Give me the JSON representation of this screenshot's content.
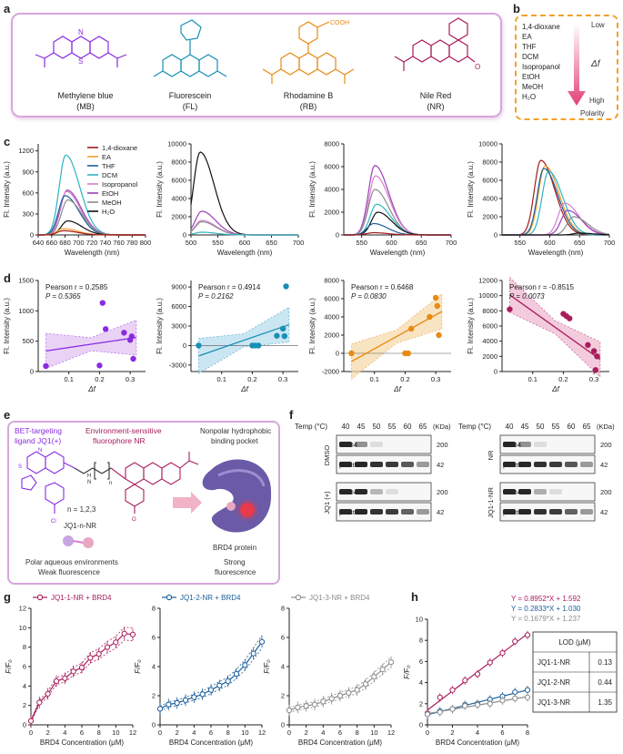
{
  "panels": {
    "a": "a",
    "b": "b",
    "c": "c",
    "d": "d",
    "e": "e",
    "f": "f",
    "g": "g",
    "h": "h"
  },
  "molecules": [
    {
      "name": "Methylene blue",
      "abbr": "(MB)",
      "color": "#8a2be2"
    },
    {
      "name": "Fluorescein",
      "abbr": "(FL)",
      "color": "#1a8fb5"
    },
    {
      "name": "Rhodamine B",
      "abbr": "(RB)",
      "color": "#e88a12"
    },
    {
      "name": "Nile Red",
      "abbr": "(NR)",
      "color": "#a81d5c"
    }
  ],
  "struct_labels": {
    "cooh": "COOH"
  },
  "solvents_b": {
    "items": [
      "1,4-dioxane",
      "EA",
      "THF",
      "DCM",
      "Isopropanol",
      "EtOH",
      "MeOH",
      "H₂O"
    ],
    "low": "Low",
    "high": "High",
    "polarity": "Polarity",
    "delta_f": "Δf"
  },
  "legend_c": {
    "items": [
      {
        "label": "1,4-dioxane",
        "color": "#a31a1a"
      },
      {
        "label": "EA",
        "color": "#f2a02c"
      },
      {
        "label": "THF",
        "color": "#1b5e9a"
      },
      {
        "label": "DCM",
        "color": "#2fb3c2"
      },
      {
        "label": "Isopropanol",
        "color": "#d77fd0"
      },
      {
        "label": "EtOH",
        "color": "#9b3fb5"
      },
      {
        "label": "MeOH",
        "color": "#8c8c8c"
      },
      {
        "label": "H₂O",
        "color": "#111111"
      }
    ]
  },
  "chart_data": [
    {
      "id": "c1",
      "type": "line",
      "xlabel": "Wavelength (nm)",
      "ylabel": "Fl. Intensity (a.u.)",
      "xlim": [
        640,
        800
      ],
      "ylim": [
        0,
        1300
      ],
      "xticks": [
        640,
        660,
        680,
        700,
        720,
        740,
        760,
        780,
        800
      ],
      "yticks": [
        0,
        300,
        600,
        900,
        1200
      ],
      "series": [
        {
          "name": "DCM",
          "peak": 681,
          "height": 1140
        },
        {
          "name": "EtOH",
          "peak": 683,
          "height": 640
        },
        {
          "name": "Isopropanol",
          "peak": 682,
          "height": 620
        },
        {
          "name": "THF",
          "peak": 680,
          "height": 560
        },
        {
          "name": "MeOH",
          "peak": 684,
          "height": 500
        },
        {
          "name": "H₂O",
          "peak": 684,
          "height": 200
        },
        {
          "name": "EA",
          "peak": 678,
          "height": 90
        },
        {
          "name": "1,4-dioxane",
          "peak": 678,
          "height": 60
        }
      ]
    },
    {
      "id": "c2",
      "type": "line",
      "xlabel": "Wavelength (nm)",
      "ylabel": "Fl. Intensity (a.u.)",
      "xlim": [
        500,
        700
      ],
      "ylim": [
        0,
        10000
      ],
      "xticks": [
        500,
        550,
        600,
        650,
        700
      ],
      "yticks": [
        0,
        2000,
        4000,
        6000,
        8000,
        10000
      ],
      "series": [
        {
          "name": "H₂O",
          "peak": 517,
          "height": 9100
        },
        {
          "name": "EtOH",
          "peak": 520,
          "height": 2600
        },
        {
          "name": "Isopropanol",
          "peak": 520,
          "height": 1600
        },
        {
          "name": "MeOH",
          "peak": 520,
          "height": 1450
        },
        {
          "name": "DCM",
          "peak": 520,
          "height": 300
        }
      ]
    },
    {
      "id": "c3",
      "type": "line",
      "xlabel": "Wavelength (nm)",
      "ylabel": "Fl. Intensity (a.u.)",
      "xlim": [
        520,
        700
      ],
      "ylim": [
        0,
        8000
      ],
      "xticks": [
        550,
        600,
        650,
        700
      ],
      "yticks": [
        0,
        2000,
        4000,
        6000,
        8000
      ],
      "series": [
        {
          "name": "EtOH",
          "peak": 572,
          "height": 6100
        },
        {
          "name": "Isopropanol",
          "peak": 573,
          "height": 5200
        },
        {
          "name": "MeOH",
          "peak": 572,
          "height": 4000
        },
        {
          "name": "DCM",
          "peak": 575,
          "height": 2700
        },
        {
          "name": "H₂O",
          "peak": 577,
          "height": 2000
        },
        {
          "name": "THF",
          "peak": 570,
          "height": 1000
        },
        {
          "name": "1,4-dioxane",
          "peak": 570,
          "height": 200
        }
      ]
    },
    {
      "id": "c4",
      "type": "line",
      "xlabel": "Wavelength (nm)",
      "ylabel": "Fl. Intensity (a.u.)",
      "xlim": [
        520,
        700
      ],
      "ylim": [
        0,
        10000
      ],
      "xticks": [
        550,
        600,
        650,
        700
      ],
      "yticks": [
        0,
        2000,
        4000,
        6000,
        8000,
        10000
      ],
      "series": [
        {
          "name": "1,4-dioxane",
          "peak": 585,
          "height": 8200
        },
        {
          "name": "EA",
          "peak": 592,
          "height": 7600
        },
        {
          "name": "THF",
          "peak": 590,
          "height": 7300
        },
        {
          "name": "DCM",
          "peak": 598,
          "height": 7000
        },
        {
          "name": "Isopropanol",
          "peak": 625,
          "height": 3500
        },
        {
          "name": "EtOH",
          "peak": 630,
          "height": 2700
        },
        {
          "name": "MeOH",
          "peak": 640,
          "height": 2000
        },
        {
          "name": "H₂O",
          "peak": 650,
          "height": 200
        }
      ]
    },
    {
      "id": "d1",
      "type": "scatter",
      "xlabel": "Δf",
      "ylabel": "Fl. Intensity (a.u.)",
      "xlim": [
        0,
        0.35
      ],
      "ylim": [
        0,
        1500
      ],
      "xticks": [
        0.1,
        0.2,
        0.3
      ],
      "yticks": [
        0,
        500,
        1000,
        1500
      ],
      "color": "#8a2be2",
      "fill": "#e2bff2",
      "pearson": "Pearson r = 0.2585",
      "p": "P = 0.5365",
      "points": [
        [
          0.025,
          90
        ],
        [
          0.2,
          100
        ],
        [
          0.21,
          1130
        ],
        [
          0.22,
          700
        ],
        [
          0.28,
          640
        ],
        [
          0.3,
          520
        ],
        [
          0.31,
          210
        ],
        [
          0.305,
          580
        ]
      ],
      "fit": [
        [
          0.025,
          340
        ],
        [
          0.32,
          560
        ]
      ]
    },
    {
      "id": "d2",
      "type": "scatter",
      "xlabel": "Δf",
      "ylabel": "Fl. Intensity (a.u.)",
      "xlim": [
        0,
        0.35
      ],
      "ylim": [
        -4000,
        10000
      ],
      "xticks": [
        0.1,
        0.2,
        0.3
      ],
      "yticks": [
        -3000,
        0,
        3000,
        6000,
        9000
      ],
      "color": "#1a8fb5",
      "fill": "#b6dcef",
      "pearson": "Pearson r = 0.4914",
      "p": "P = 0.2162",
      "points": [
        [
          0.025,
          0
        ],
        [
          0.2,
          0
        ],
        [
          0.21,
          0
        ],
        [
          0.22,
          0
        ],
        [
          0.28,
          1500
        ],
        [
          0.3,
          2600
        ],
        [
          0.31,
          9100
        ],
        [
          0.305,
          1450
        ]
      ],
      "fit": [
        [
          0.025,
          -1600
        ],
        [
          0.32,
          3200
        ]
      ]
    },
    {
      "id": "d3",
      "type": "scatter",
      "xlabel": "Δf",
      "ylabel": "Fl. Intensity (a.u.)",
      "xlim": [
        0,
        0.35
      ],
      "ylim": [
        -2000,
        8000
      ],
      "xticks": [
        0.1,
        0.2,
        0.3
      ],
      "yticks": [
        -2000,
        0,
        2000,
        4000,
        6000,
        8000
      ],
      "color": "#e88a12",
      "fill": "#f7d9a9",
      "pearson": "Pearson r = 0.6468",
      "p": "P = 0.0830",
      "points": [
        [
          0.025,
          0
        ],
        [
          0.2,
          0
        ],
        [
          0.21,
          0
        ],
        [
          0.22,
          2700
        ],
        [
          0.28,
          4000
        ],
        [
          0.3,
          6100
        ],
        [
          0.31,
          2000
        ],
        [
          0.305,
          5200
        ]
      ],
      "fit": [
        [
          0.025,
          -900
        ],
        [
          0.32,
          4600
        ]
      ]
    },
    {
      "id": "d4",
      "type": "scatter",
      "xlabel": "Δf",
      "ylabel": "Fl. Intensity (a.u.)",
      "xlim": [
        0,
        0.35
      ],
      "ylim": [
        0,
        12000
      ],
      "xticks": [
        0.1,
        0.2,
        0.3
      ],
      "yticks": [
        0,
        2000,
        4000,
        6000,
        8000,
        10000,
        12000
      ],
      "color": "#a81d5c",
      "fill": "#efb6cf",
      "pearson": "Pearson r = -0.8515",
      "p": "P = 0.0073",
      "points": [
        [
          0.025,
          8200
        ],
        [
          0.2,
          7600
        ],
        [
          0.21,
          7300
        ],
        [
          0.22,
          7000
        ],
        [
          0.28,
          3500
        ],
        [
          0.3,
          2700
        ],
        [
          0.31,
          2000
        ],
        [
          0.305,
          200
        ]
      ],
      "fit": [
        [
          0.025,
          10100
        ],
        [
          0.32,
          1600
        ]
      ]
    },
    {
      "id": "g1",
      "type": "line",
      "title": "JQ1-1-NR + BRD4",
      "xlabel": "BRD4 Concentration (μM)",
      "ylabel": "F/F₀",
      "xlim": [
        0,
        12
      ],
      "ylim": [
        0,
        12
      ],
      "xticks": [
        0,
        2,
        4,
        6,
        8,
        10,
        12
      ],
      "yticks": [
        0,
        2,
        4,
        6,
        8,
        10,
        12
      ],
      "color": "#a81d5c",
      "x": [
        0,
        1,
        2,
        3,
        4,
        5,
        6,
        7,
        8,
        9,
        10,
        11,
        12
      ],
      "y": [
        0.4,
        2.3,
        3.2,
        4.5,
        4.8,
        5.5,
        5.9,
        6.9,
        7.3,
        8.0,
        8.5,
        9.4,
        9.3
      ]
    },
    {
      "id": "g2",
      "type": "line",
      "title": "JQ1-2-NR + BRD4",
      "xlabel": "BRD4 Concentration (μM)",
      "ylabel": "F/F₀",
      "xlim": [
        0,
        12
      ],
      "ylim": [
        0,
        8
      ],
      "xticks": [
        0,
        2,
        4,
        6,
        8,
        10,
        12
      ],
      "yticks": [
        0,
        2,
        4,
        6,
        8
      ],
      "color": "#1b5e9a",
      "x": [
        0,
        1,
        2,
        3,
        4,
        5,
        6,
        7,
        8,
        9,
        10,
        11,
        12
      ],
      "y": [
        1.1,
        1.4,
        1.5,
        1.7,
        1.9,
        2.1,
        2.4,
        2.7,
        3.0,
        3.5,
        4.1,
        4.9,
        5.7
      ]
    },
    {
      "id": "g3",
      "type": "line",
      "title": "JQ1-3-NR + BRD4",
      "xlabel": "BRD4 Concentration (μM)",
      "ylabel": "F/F₀",
      "xlim": [
        0,
        12
      ],
      "ylim": [
        0,
        8
      ],
      "xticks": [
        0,
        2,
        4,
        6,
        8,
        10,
        12
      ],
      "yticks": [
        0,
        2,
        4,
        6,
        8
      ],
      "color": "#8c8c8c",
      "x": [
        0,
        1,
        2,
        3,
        4,
        5,
        6,
        7,
        8,
        9,
        10,
        11,
        12
      ],
      "y": [
        1.0,
        1.2,
        1.3,
        1.4,
        1.6,
        1.8,
        2.0,
        2.2,
        2.4,
        2.8,
        3.3,
        3.8,
        4.3
      ]
    },
    {
      "id": "h",
      "type": "scatter",
      "xlabel": "BRD4 Concentration (μM)",
      "ylabel": "F/F₀",
      "xlim": [
        0,
        8
      ],
      "ylim": [
        0,
        10
      ],
      "xticks": [
        0,
        2,
        4,
        6,
        8
      ],
      "yticks": [
        0,
        2,
        4,
        6,
        8,
        10
      ],
      "series": [
        {
          "name": "JQ1-1-NR",
          "color": "#a81d5c",
          "x": [
            0,
            1,
            2,
            3,
            4,
            5,
            6,
            7,
            8
          ],
          "y": [
            1.1,
            2.6,
            3.3,
            4.2,
            4.8,
            5.9,
            6.8,
            7.9,
            8.5
          ],
          "eq": "Y = 0.8952*X + 1.592"
        },
        {
          "name": "JQ1-2-NR",
          "color": "#1b5e9a",
          "x": [
            0,
            1,
            2,
            3,
            4,
            5,
            6,
            7,
            8
          ],
          "y": [
            1.0,
            1.3,
            1.5,
            1.9,
            2.0,
            2.4,
            2.7,
            3.1,
            3.3
          ],
          "eq": "Y = 0.2833*X + 1.030"
        },
        {
          "name": "JQ1-3-NR",
          "color": "#8c8c8c",
          "x": [
            0,
            1,
            2,
            3,
            4,
            5,
            6,
            7,
            8
          ],
          "y": [
            1.0,
            1.2,
            1.5,
            1.8,
            1.9,
            2.0,
            2.3,
            2.5,
            2.6
          ],
          "eq": "Y = 0.1679*X + 1.237"
        }
      ]
    }
  ],
  "lod_table": {
    "header": "LOD (μM)",
    "rows": [
      {
        "name": "JQ1-1-NR",
        "value": "0.13"
      },
      {
        "name": "JQ1-2-NR",
        "value": "0.44"
      },
      {
        "name": "JQ1-3-NR",
        "value": "1.35"
      }
    ]
  },
  "panel_e": {
    "bet_label": "BET-targeting",
    "ligand_label": "ligand JQ1(+)",
    "env_label1": "Environment-sensitive",
    "env_label2": "fluorophore NR",
    "n_label": "n = 1,2,3",
    "compound": "JQ1-n-NR",
    "n": "n",
    "polar1": "Polar aqueous environments",
    "polar2": "Weak fluorescence",
    "pocket1": "Nonpolar hydrophobic",
    "pocket2": "binding pocket",
    "protein": "BRD4 protein",
    "strong1": "Strong",
    "strong2": "fluorescence",
    "atoms": {
      "N": "N",
      "S": "S",
      "O": "O",
      "Cl": "Cl",
      "H": "H"
    }
  },
  "panel_f": {
    "temp_label": "Temp (°C)",
    "temps": [
      "40",
      "45",
      "50",
      "55",
      "60",
      "65"
    ],
    "kda": "(KDa)",
    "left_groups": [
      {
        "group": "DMSO",
        "bands": [
          {
            "name": "BRD4",
            "kda": "200"
          },
          {
            "name": "β-actin",
            "kda": "42"
          }
        ]
      },
      {
        "group": "JQ1 (+)",
        "bands": [
          {
            "name": "BRD4",
            "kda": "200"
          },
          {
            "name": "β-actin",
            "kda": "42"
          }
        ]
      }
    ],
    "right_groups": [
      {
        "group": "NR",
        "bands": [
          {
            "name": "BRD4",
            "kda": "200"
          },
          {
            "name": "β-actin",
            "kda": "42"
          }
        ]
      },
      {
        "group": "JQ1-1-NR",
        "bands": [
          {
            "name": "BRD4",
            "kda": "200"
          },
          {
            "name": "β-actin",
            "kda": "42"
          }
        ]
      }
    ],
    "intensities": {
      "DMSO_BRD4": [
        1.0,
        0.45,
        0.05,
        0,
        0,
        0
      ],
      "DMSO_actin": [
        1.0,
        1.0,
        0.95,
        0.9,
        0.75,
        0.4
      ],
      "JQ1_BRD4": [
        1.0,
        1.0,
        0.25,
        0.05,
        0,
        0
      ],
      "JQ1_actin": [
        1.0,
        1.0,
        0.95,
        0.9,
        0.7,
        0.4
      ],
      "NR_BRD4": [
        1.0,
        0.45,
        0.05,
        0,
        0,
        0
      ],
      "NR_actin": [
        1.0,
        1.0,
        0.95,
        0.9,
        0.75,
        0.4
      ],
      "JQ11_BRD4": [
        1.0,
        1.0,
        0.3,
        0.05,
        0,
        0
      ],
      "JQ11_actin": [
        1.0,
        1.0,
        0.95,
        0.9,
        0.7,
        0.4
      ]
    }
  }
}
